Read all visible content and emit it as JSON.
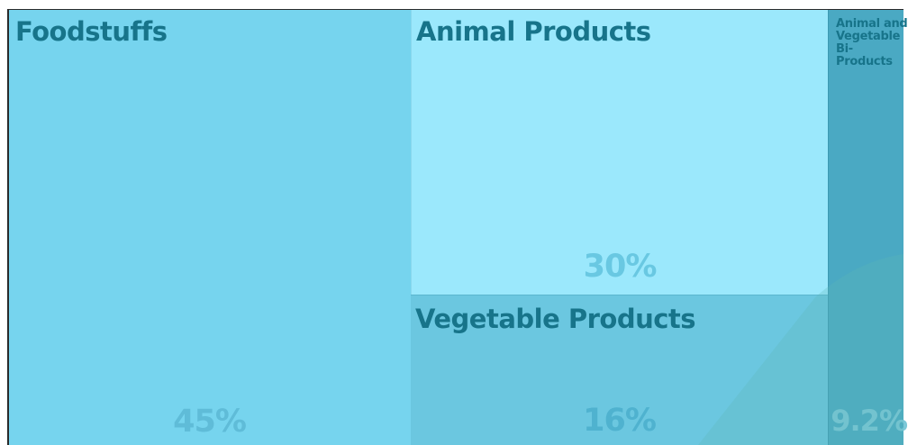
{
  "chart_data": {
    "type": "treemap",
    "tiles": [
      {
        "id": "foodstuffs",
        "label": "Foodstuffs",
        "percent_label": "45%",
        "value": 45,
        "color": "#76d4ee",
        "label_size": "big"
      },
      {
        "id": "animal-products",
        "label": "Animal Products",
        "percent_label": "30%",
        "value": 30,
        "color": "#9be8fc",
        "label_size": "big"
      },
      {
        "id": "vegetable-products",
        "label": "Vegetable Products",
        "percent_label": "16%",
        "value": 16,
        "color": "#6bc7e0",
        "label_size": "big"
      },
      {
        "id": "animal-vegetable-bi-products",
        "label": "Animal and Vegetable Bi-Products",
        "percent_label": "9.2%",
        "value": 9.2,
        "color": "#4aa9c3",
        "label_size": "small"
      }
    ]
  },
  "colors": {
    "label": "#17748a",
    "percent_text": "#4fb8d6",
    "overlay": "#5fb8b8"
  }
}
